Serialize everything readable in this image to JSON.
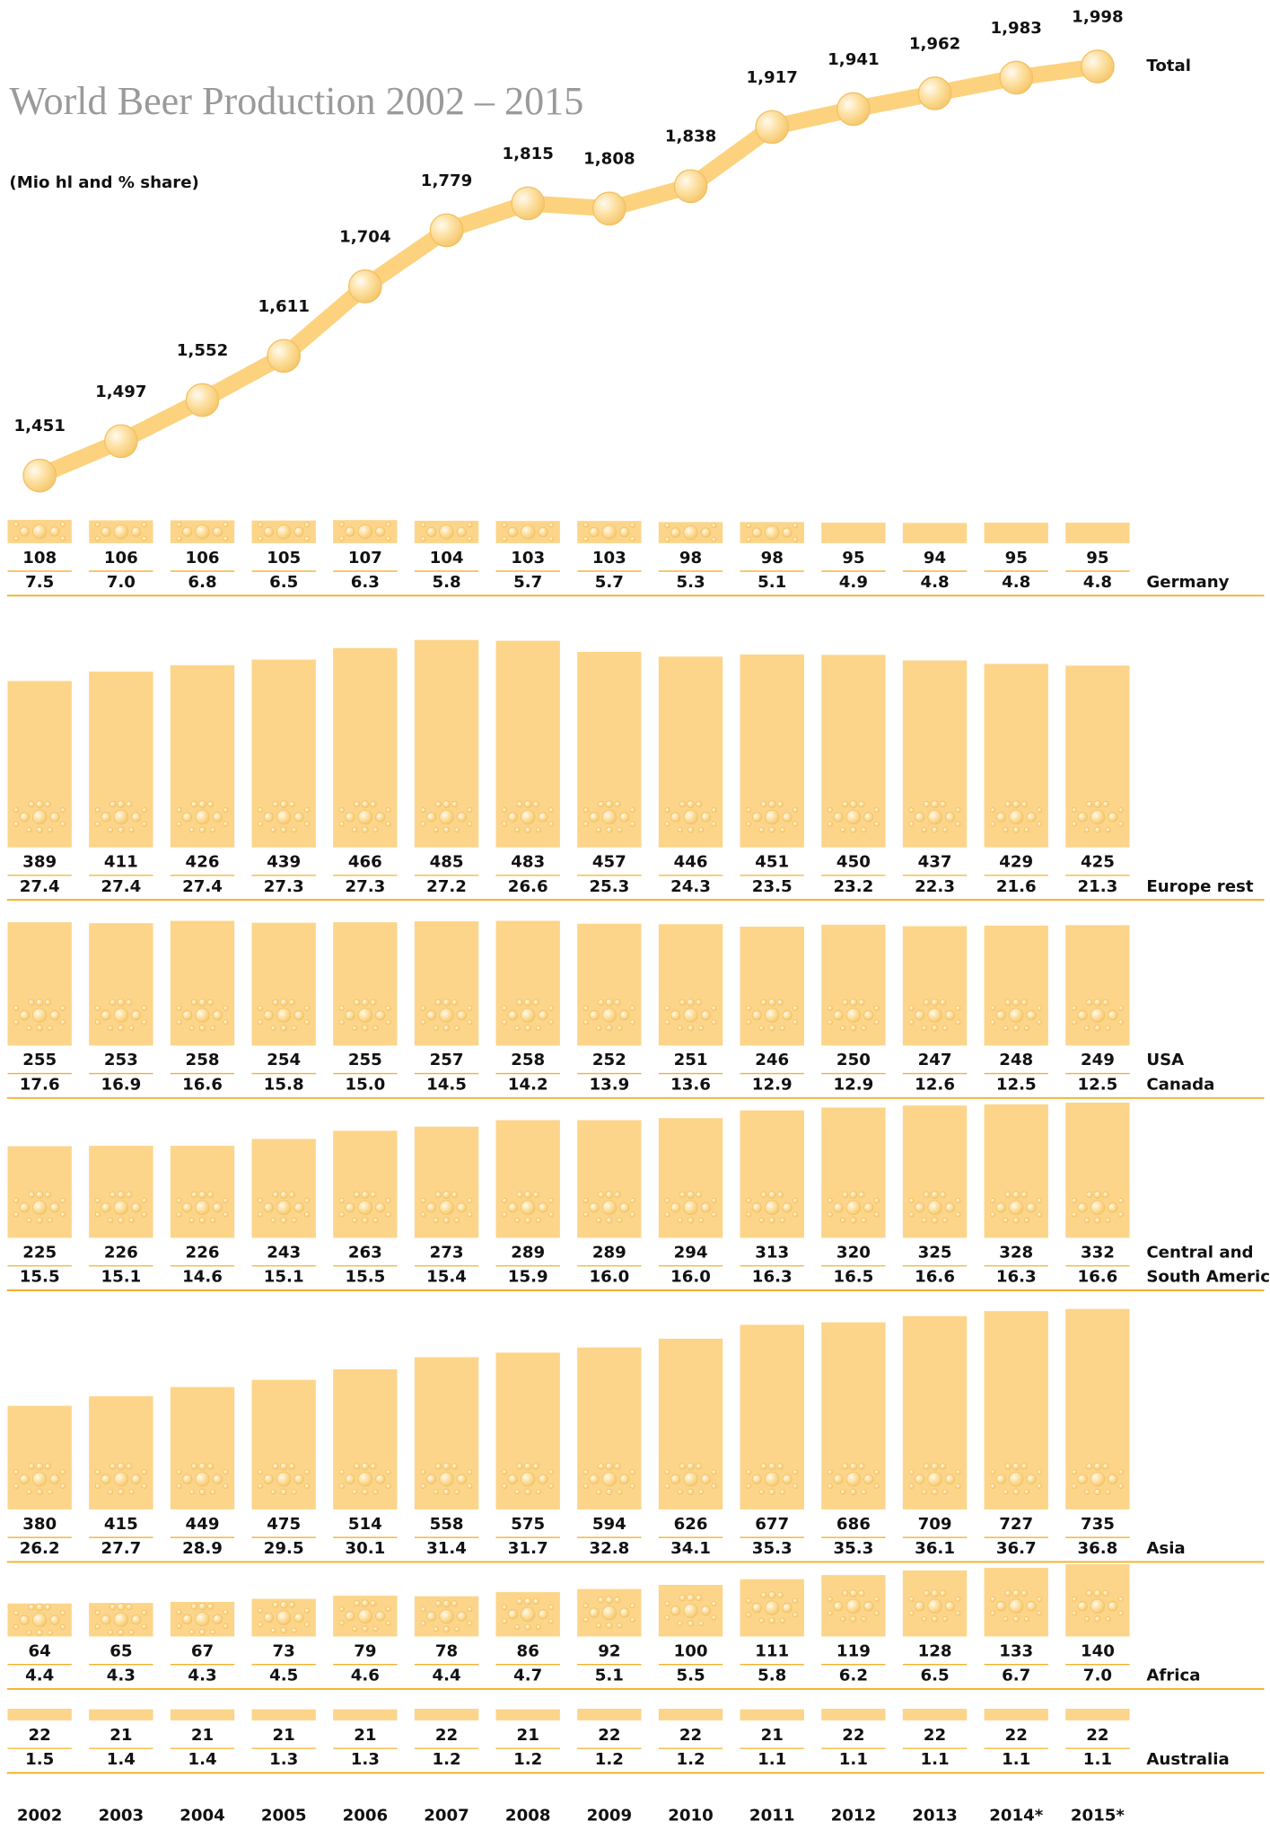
{
  "chart_data": {
    "type": "line-and-bars",
    "title": "World Beer Production 2002 – 2015",
    "subtitle": "(Mio hl and % share)",
    "color": "#fcd58a",
    "line_color": "#fcd27e",
    "year_color": "#f5b02a",
    "categories": [
      "2002",
      "2003",
      "2004",
      "2005",
      "2006",
      "2007",
      "2008",
      "2009",
      "2010",
      "2011",
      "2012",
      "2013",
      "2014*",
      "2015*"
    ],
    "total": {
      "name": "Total",
      "values": [
        1451,
        1497,
        1552,
        1611,
        1704,
        1779,
        1815,
        1808,
        1838,
        1917,
        1941,
        1962,
        1983,
        1998
      ]
    },
    "regions": [
      {
        "label_lines": [
          "Germany"
        ],
        "values": [
          108,
          106,
          106,
          105,
          107,
          104,
          103,
          103,
          98,
          98,
          95,
          94,
          95,
          95
        ],
        "shares": [
          7.5,
          7.0,
          6.8,
          6.5,
          6.3,
          5.8,
          5.7,
          5.7,
          5.3,
          5.1,
          4.9,
          4.8,
          4.8,
          4.8
        ],
        "share_labels": [
          "7.5",
          "7.0",
          "6.8",
          "6.5",
          "6.3",
          "5.8",
          "5.7",
          "5.7",
          "5.3",
          "5.1",
          "4.9",
          "4.8",
          "4.8",
          "4.8"
        ]
      },
      {
        "label_lines": [
          "Europe rest"
        ],
        "values": [
          389,
          411,
          426,
          439,
          466,
          485,
          483,
          457,
          446,
          451,
          450,
          437,
          429,
          425
        ],
        "shares": [
          27.4,
          27.4,
          27.4,
          27.3,
          27.3,
          27.2,
          26.6,
          25.3,
          24.3,
          23.5,
          23.2,
          22.3,
          21.6,
          21.3
        ]
      },
      {
        "label_lines": [
          "USA",
          "Canada"
        ],
        "values": [
          255,
          253,
          258,
          254,
          255,
          257,
          258,
          252,
          251,
          246,
          250,
          247,
          248,
          249
        ],
        "shares": [
          17.6,
          16.9,
          16.6,
          15.8,
          15.0,
          14.5,
          14.2,
          13.9,
          13.6,
          12.9,
          12.9,
          12.6,
          12.5,
          12.5
        ],
        "share_labels": [
          "17.6",
          "16.9",
          "16.6",
          "15.8",
          "15.0",
          "14.5",
          "14.2",
          "13.9",
          "13.6",
          "12.9",
          "12.9",
          "12.6",
          "12.5",
          "12.5"
        ]
      },
      {
        "label_lines": [
          "Central and",
          "South America"
        ],
        "values": [
          225,
          226,
          226,
          243,
          263,
          273,
          289,
          289,
          294,
          313,
          320,
          325,
          328,
          332
        ],
        "shares": [
          15.5,
          15.1,
          14.6,
          15.1,
          15.5,
          15.4,
          15.9,
          16.0,
          16.0,
          16.3,
          16.5,
          16.6,
          16.3,
          16.6
        ],
        "share_labels": [
          "15.5",
          "15.1",
          "14.6",
          "15.1",
          "15.5",
          "15.4",
          "15.9",
          "16.0",
          "16.0",
          "16.3",
          "16.5",
          "16.6",
          "16.3",
          "16.6"
        ]
      },
      {
        "label_lines": [
          "Asia"
        ],
        "values": [
          380,
          415,
          449,
          475,
          514,
          558,
          575,
          594,
          626,
          677,
          686,
          709,
          727,
          735
        ],
        "shares": [
          26.2,
          27.7,
          28.9,
          29.5,
          30.1,
          31.4,
          31.7,
          32.8,
          34.1,
          35.3,
          35.3,
          36.1,
          36.7,
          36.8
        ]
      },
      {
        "label_lines": [
          "Africa"
        ],
        "values": [
          64,
          65,
          67,
          73,
          79,
          78,
          86,
          92,
          100,
          111,
          119,
          128,
          133,
          140
        ],
        "shares": [
          4.4,
          4.3,
          4.3,
          4.5,
          4.6,
          4.4,
          4.7,
          5.1,
          5.5,
          5.8,
          6.2,
          6.5,
          6.7,
          7.0
        ],
        "share_labels": [
          "4.4",
          "4.3",
          "4.3",
          "4.5",
          "4.6",
          "4.4",
          "4.7",
          "5.1",
          "5.5",
          "5.8",
          "6.2",
          "6.5",
          "6.7",
          "7.0"
        ]
      },
      {
        "label_lines": [
          "Australia"
        ],
        "values": [
          22,
          21,
          21,
          21,
          21,
          22,
          21,
          22,
          22,
          21,
          22,
          22,
          22,
          22
        ],
        "shares": [
          1.5,
          1.4,
          1.4,
          1.3,
          1.3,
          1.2,
          1.2,
          1.2,
          1.2,
          1.1,
          1.1,
          1.1,
          1.1,
          1.1
        ]
      }
    ]
  }
}
